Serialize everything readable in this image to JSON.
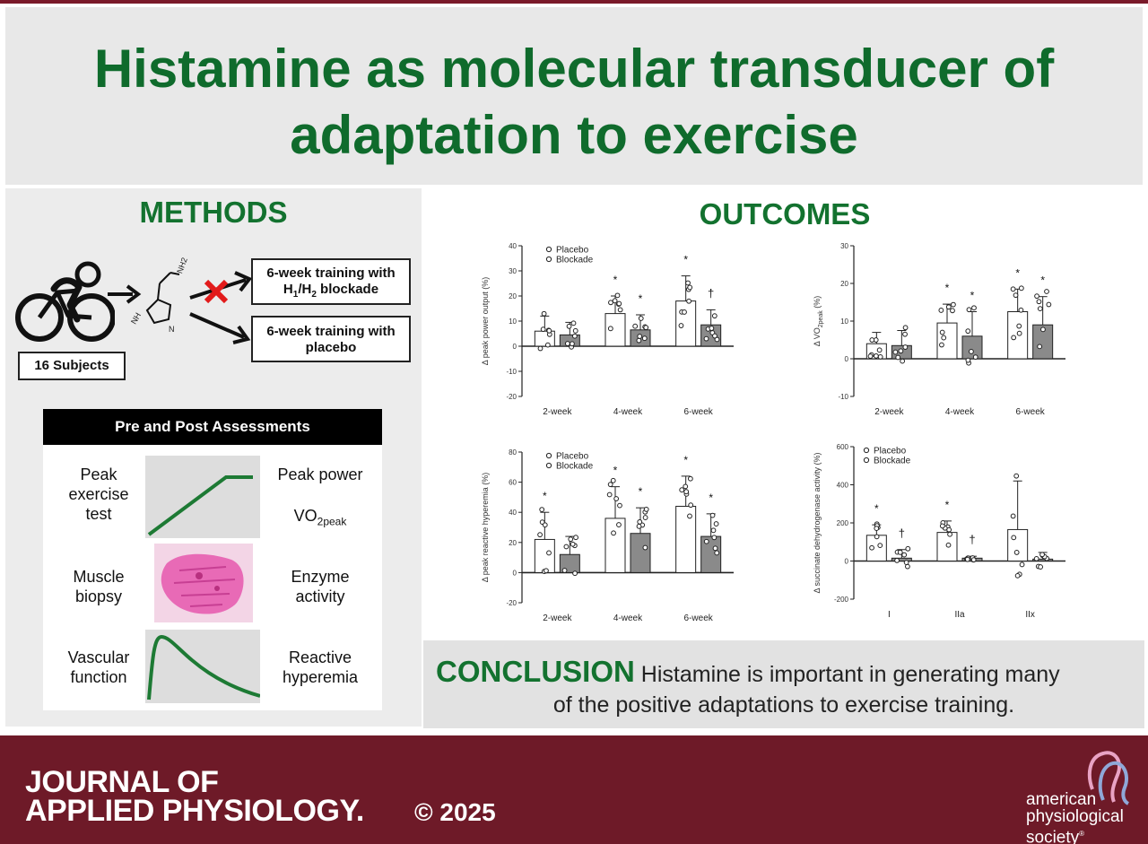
{
  "title": {
    "line1": "Histamine as molecular transducer of",
    "line2": "adaptation to exercise"
  },
  "methods": {
    "heading": "METHODS",
    "subjects": "16 Subjects",
    "blockade_box": {
      "pre": "6-week training with",
      "h1": "H",
      "sub1": "1",
      "slash": "/H",
      "sub2": "2",
      "post": " blockade"
    },
    "placebo_box": {
      "line1": "6-week training with",
      "line2": "placebo"
    },
    "molecule_labels": {
      "nh2": "NH2",
      "nh": "NH",
      "n": "N"
    },
    "assessments": {
      "heading": "Pre and Post Assessments",
      "rows": [
        {
          "left": [
            "Peak",
            "exercise",
            "test"
          ],
          "right1": "Peak power",
          "right2_main": "VO",
          "right2_sub": "2peak"
        },
        {
          "left": [
            "Muscle",
            "biopsy"
          ],
          "right": [
            "Enzyme",
            "activity"
          ]
        },
        {
          "left": [
            "Vascular",
            "function"
          ],
          "right": [
            "Reactive",
            "hyperemia"
          ]
        }
      ]
    }
  },
  "outcomes": {
    "heading": "OUTCOMES"
  },
  "legend": {
    "placebo": "Placebo",
    "blockade": "Blockade"
  },
  "chart_data": [
    {
      "type": "bar",
      "ylabel": "Δ peak power output (%)",
      "ylim": [
        -20,
        40
      ],
      "yticks": [
        "40",
        "30",
        "20",
        "10",
        "0",
        "-10",
        "-20"
      ],
      "categories": [
        "2-week",
        "4-week",
        "6-week"
      ],
      "series": [
        {
          "name": "Placebo",
          "values": [
            6,
            13,
            18
          ],
          "sd": [
            6,
            7,
            10
          ]
        },
        {
          "name": "Blockade",
          "values": [
            4.5,
            6.5,
            8.5
          ],
          "sd": [
            5,
            6,
            6
          ]
        }
      ],
      "annotations": [
        {
          "category": "4-week",
          "series": "Placebo",
          "mark": "*"
        },
        {
          "category": "4-week",
          "series": "Blockade",
          "mark": "*"
        },
        {
          "category": "6-week",
          "series": "Placebo",
          "mark": "*"
        },
        {
          "category": "6-week",
          "series": "Blockade",
          "mark": "†"
        }
      ]
    },
    {
      "type": "bar",
      "ylabel_main": "Δ VO",
      "ylabel_sub": "2peak",
      "ylabel_unit": " (%)",
      "ylim": [
        -10,
        30
      ],
      "yticks": [
        "30",
        "20",
        "10",
        "0",
        "-10"
      ],
      "categories": [
        "2-week",
        "4-week",
        "6-week"
      ],
      "series": [
        {
          "name": "Placebo",
          "values": [
            4,
            9.5,
            12.5
          ],
          "sd": [
            3,
            5,
            6
          ]
        },
        {
          "name": "Blockade",
          "values": [
            3.5,
            6,
            9
          ],
          "sd": [
            4,
            6.5,
            7.5
          ]
        }
      ],
      "annotations": [
        {
          "category": "4-week",
          "series": "Placebo",
          "mark": "*"
        },
        {
          "category": "4-week",
          "series": "Blockade",
          "mark": "*"
        },
        {
          "category": "6-week",
          "series": "Placebo",
          "mark": "*"
        },
        {
          "category": "6-week",
          "series": "Blockade",
          "mark": "*"
        }
      ]
    },
    {
      "type": "bar",
      "ylabel": "Δ peak reactive hyperemia (%)",
      "ylim": [
        -20,
        80
      ],
      "yticks": [
        "80",
        "60",
        "40",
        "20",
        "0",
        "-20"
      ],
      "categories": [
        "2-week",
        "4-week",
        "6-week"
      ],
      "series": [
        {
          "name": "Placebo",
          "values": [
            22,
            36,
            44
          ],
          "sd": [
            18,
            21,
            20
          ]
        },
        {
          "name": "Blockade",
          "values": [
            12,
            26,
            24
          ],
          "sd": [
            12,
            17,
            15
          ]
        }
      ],
      "annotations": [
        {
          "category": "2-week",
          "series": "Placebo",
          "mark": "*"
        },
        {
          "category": "4-week",
          "series": "Placebo",
          "mark": "*"
        },
        {
          "category": "4-week",
          "series": "Blockade",
          "mark": "*"
        },
        {
          "category": "6-week",
          "series": "Placebo",
          "mark": "*"
        },
        {
          "category": "6-week",
          "series": "Blockade",
          "mark": "*"
        }
      ]
    },
    {
      "type": "bar",
      "ylabel": "Δ succinate dehydrogenase activity (%)",
      "ylim": [
        -200,
        600
      ],
      "yticks": [
        "600",
        "400",
        "200",
        "0",
        "-200"
      ],
      "categories": [
        "I",
        "IIa",
        "IIx"
      ],
      "series": [
        {
          "name": "Placebo",
          "values": [
            135,
            150,
            165
          ],
          "sd": [
            55,
            60,
            255
          ]
        },
        {
          "name": "Blockade",
          "values": [
            15,
            15,
            10
          ],
          "sd": [
            45,
            10,
            35
          ]
        }
      ],
      "annotations": [
        {
          "category": "I",
          "series": "Placebo",
          "mark": "*"
        },
        {
          "category": "I",
          "series": "Blockade",
          "mark": "†"
        },
        {
          "category": "IIa",
          "series": "Placebo",
          "mark": "*"
        },
        {
          "category": "IIa",
          "series": "Blockade",
          "mark": "†"
        }
      ]
    }
  ],
  "conclusion": {
    "label": "CONCLUSION",
    "text1": " Histamine is important in generating many",
    "text2": "of the positive adaptations to exercise training."
  },
  "footer": {
    "journal_line1": "JOURNAL OF",
    "journal_line2": "APPLIED PHYSIOLOGY.",
    "copyright": "© 2025",
    "society": [
      "american",
      "physiological",
      "society"
    ],
    "society_mark": "®"
  },
  "colors": {
    "title_green": "#0f6b2c",
    "heading_green": "#13722f",
    "footer_maroon": "#6e1a28",
    "cross_red": "#e21b1b",
    "blockade_bar": "#8a8a8a",
    "histology_pink": "#e86ab6"
  }
}
